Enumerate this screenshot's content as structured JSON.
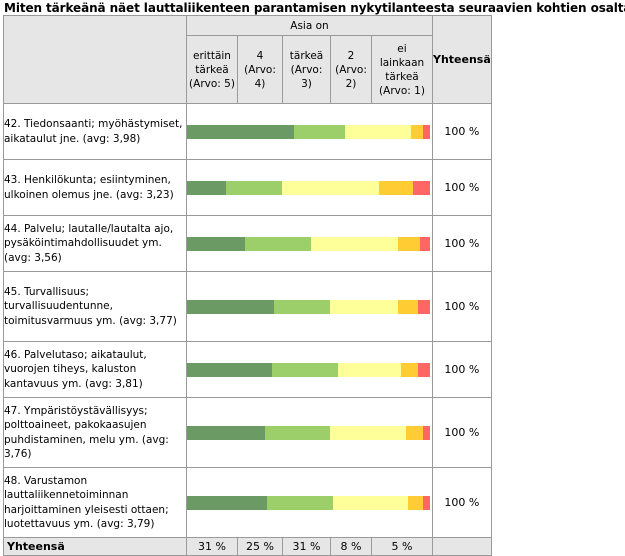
{
  "title": "Miten tärkeänä näet lauttaliikenteen parantamisen nykytilanteesta seuraavien kohtien osalta:",
  "group_header": "Asia on",
  "total_header": "Yhteensä",
  "options": [
    {
      "label": "erittäin tärkeä (Arvo: 5)"
    },
    {
      "label": "4 (Arvo: 4)"
    },
    {
      "label": "tärkeä (Arvo: 3)"
    },
    {
      "label": "2 (Arvo: 2)"
    },
    {
      "label": "ei lainkaan tärkeä (Arvo: 1)"
    }
  ],
  "colors": [
    "#6b9a64",
    "#9ccf6a",
    "#ffff99",
    "#ffcc33",
    "#ff6666"
  ],
  "rows": [
    {
      "label": "42. Tiedonsaanti; myöhästymiset, aikataulut jne. (avg: 3,98)",
      "total": "100 %"
    },
    {
      "label": "43. Henkilökunta; esiintyminen, ulkoinen olemus jne. (avg: 3,23)",
      "total": "100 %"
    },
    {
      "label": "44. Palvelu; lautalle/lautalta ajo, pysäköintimahdollisuudet ym. (avg: 3,56)",
      "total": "100 %"
    },
    {
      "label": "45. Turvallisuus; turvallisuudentunne, toimitusvarmuus ym. (avg: 3,77)",
      "total": "100 %"
    },
    {
      "label": "46. Palvelutaso; aikataulut, vuorojen tiheys, kaluston kantavuus ym. (avg: 3,81)",
      "total": "100 %"
    },
    {
      "label": "47. Ympäristöystävällisyys; polttoaineet, pakokaasujen puhdistaminen, melu ym. (avg: 3,76)",
      "total": "100 %"
    },
    {
      "label": "48. Varustamon lauttaliikennetoiminnan harjoittaminen yleisesti ottaen; luotettavuus ym. (avg: 3,79)",
      "total": "100 %"
    }
  ],
  "totals_row": {
    "label": "Yhteensä",
    "values": [
      "31 %",
      "25 %",
      "31 %",
      "8 %",
      "5 %"
    ]
  },
  "chart_data": {
    "type": "bar",
    "stacked": true,
    "orientation": "horizontal",
    "unit": "%",
    "categories": [
      "42. Tiedonsaanti; myöhästymiset, aikataulut jne. (avg: 3,98)",
      "43. Henkilökunta; esiintyminen, ulkoinen olemus jne. (avg: 3,23)",
      "44. Palvelu; lautalle/lautalta ajo, pysäköintimahdollisuudet ym. (avg: 3,56)",
      "45. Turvallisuus; turvallisuudentunne, toimitusvarmuus ym. (avg: 3,77)",
      "46. Palvelutaso; aikataulut, vuorojen tiheys, kaluston kantavuus ym. (avg: 3,81)",
      "47. Ympäristöystävällisyys; polttoaineet, pakokaasujen puhdistaminen, melu ym. (avg: 3,76)",
      "48. Varustamon lauttaliikennetoiminnan harjoittaminen yleisesti ottaen; luotettavuus ym. (avg: 3,79)"
    ],
    "series": [
      {
        "name": "erittäin tärkeä (Arvo: 5)",
        "values": [
          44,
          16,
          24,
          36,
          35,
          32,
          33
        ]
      },
      {
        "name": "4 (Arvo: 4)",
        "values": [
          21,
          23,
          27,
          23,
          27,
          27,
          27
        ]
      },
      {
        "name": "tärkeä (Arvo: 3)",
        "values": [
          27,
          40,
          36,
          28,
          26,
          31,
          31
        ]
      },
      {
        "name": "2 (Arvo: 2)",
        "values": [
          5,
          14,
          9,
          8,
          7,
          7,
          6
        ]
      },
      {
        "name": "ei lainkaan tärkeä (Arvo: 1)",
        "values": [
          3,
          7,
          4,
          5,
          5,
          3,
          3
        ]
      }
    ],
    "xlim": [
      0,
      100
    ]
  }
}
